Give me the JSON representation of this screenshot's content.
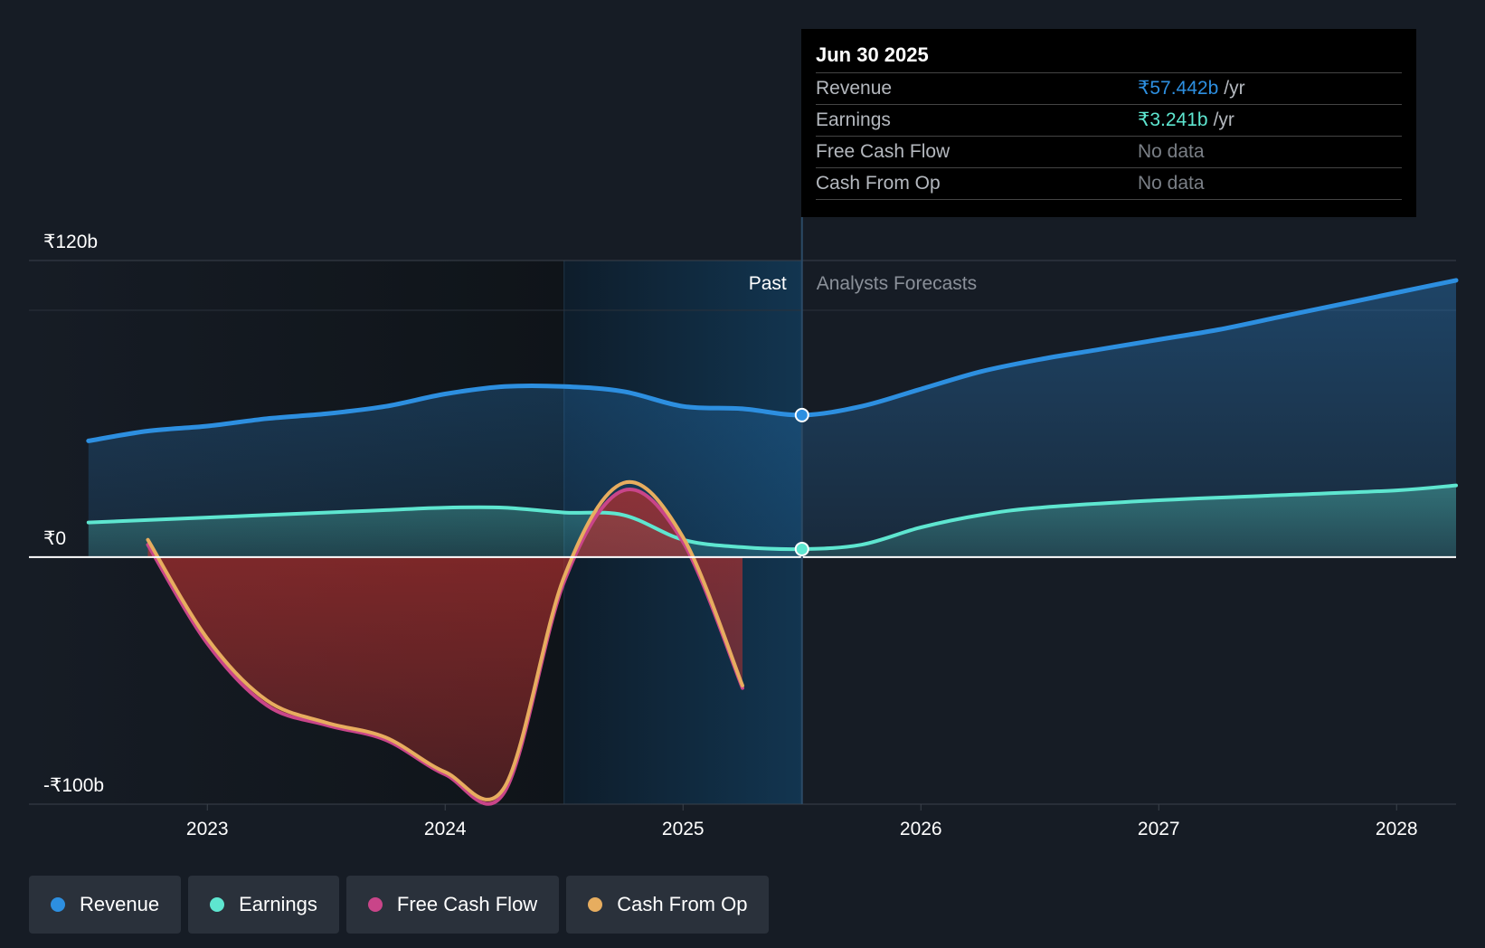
{
  "chart_data": {
    "type": "area",
    "currency": "₹",
    "y_tick_labels": [
      "₹120b",
      "₹0",
      "-₹100b"
    ],
    "ylim": [
      -100,
      120
    ],
    "x_tick_labels": [
      "2023",
      "2024",
      "2025",
      "2026",
      "2027",
      "2028"
    ],
    "xlim": [
      2022.25,
      2028.25
    ],
    "past_label": "Past",
    "forecast_label": "Analysts Forecasts",
    "divider_x": 2025.5,
    "highlight_start_x": 2024.5,
    "series": [
      {
        "name": "Revenue",
        "color": "#2d8fe0",
        "x": [
          2022.5,
          2022.75,
          2023.0,
          2023.25,
          2023.5,
          2023.75,
          2024.0,
          2024.25,
          2024.5,
          2024.75,
          2025.0,
          2025.25,
          2025.5,
          2025.75,
          2026.0,
          2026.25,
          2026.5,
          2026.75,
          2027.0,
          2027.25,
          2027.5,
          2027.75,
          2028.0,
          2028.25
        ],
        "values": [
          47,
          51,
          53,
          56,
          58,
          61,
          66,
          69,
          69,
          67,
          61,
          60,
          57.442,
          61,
          68,
          75,
          80,
          84,
          88,
          92,
          97,
          102,
          107,
          112
        ]
      },
      {
        "name": "Earnings",
        "color": "#5ee6d0",
        "x": [
          2022.5,
          2023.0,
          2023.5,
          2023.75,
          2024.0,
          2024.25,
          2024.5,
          2024.75,
          2025.0,
          2025.25,
          2025.5,
          2025.75,
          2026.0,
          2026.25,
          2026.5,
          2027.0,
          2027.5,
          2028.0,
          2028.25
        ],
        "values": [
          14,
          16,
          18,
          19,
          20,
          20,
          18,
          17,
          7,
          4,
          3.241,
          5,
          12,
          17,
          20,
          23,
          25,
          27,
          29
        ]
      },
      {
        "name": "Free Cash Flow",
        "color": "#c94589",
        "x": [
          2022.75,
          2023.0,
          2023.25,
          2023.5,
          2023.75,
          2024.0,
          2024.25,
          2024.5,
          2024.75,
          2025.0,
          2025.25
        ],
        "values": [
          5,
          -35,
          -60,
          -68,
          -74,
          -88,
          -95,
          -10,
          27,
          6,
          -53
        ]
      },
      {
        "name": "Cash From Op",
        "color": "#e7ad5f",
        "x": [
          2022.75,
          2023.0,
          2023.25,
          2023.5,
          2023.75,
          2024.0,
          2024.25,
          2024.5,
          2024.75,
          2025.0,
          2025.25
        ],
        "values": [
          7,
          -33,
          -58,
          -67,
          -73,
          -87,
          -93,
          -8,
          30,
          8,
          -52
        ]
      }
    ],
    "tooltip": {
      "date": "Jun 30 2025",
      "rows": [
        {
          "label": "Revenue",
          "value": "₹57.442b",
          "unit": "/yr",
          "color": "#2d8fe0"
        },
        {
          "label": "Earnings",
          "value": "₹3.241b",
          "unit": "/yr",
          "color": "#5ee6d0"
        },
        {
          "label": "Free Cash Flow",
          "value": "No data",
          "unit": ""
        },
        {
          "label": "Cash From Op",
          "value": "No data",
          "unit": ""
        }
      ]
    }
  },
  "legend": [
    {
      "label": "Revenue",
      "color": "#2d8fe0"
    },
    {
      "label": "Earnings",
      "color": "#5ee6d0"
    },
    {
      "label": "Free Cash Flow",
      "color": "#c94589"
    },
    {
      "label": "Cash From Op",
      "color": "#e7ad5f"
    }
  ]
}
